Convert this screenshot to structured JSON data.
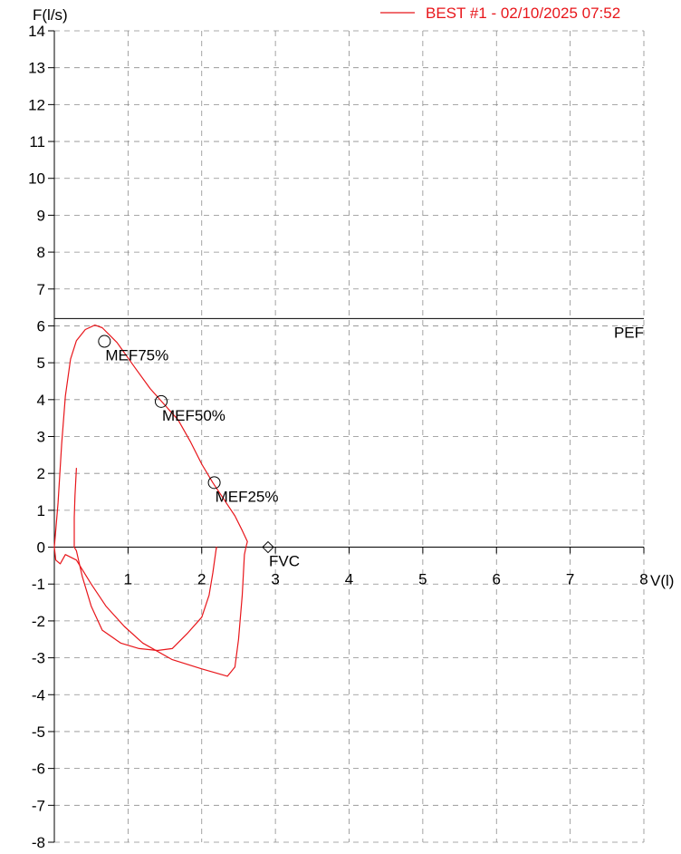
{
  "chart_data": {
    "type": "line",
    "title": "",
    "ylabel": "F(l/s)",
    "xlabel": "V(l)",
    "xlim": [
      0,
      8
    ],
    "ylim": [
      -8,
      14
    ],
    "x_ticks": [
      "1",
      "2",
      "3",
      "4",
      "5",
      "6",
      "7",
      "8"
    ],
    "y_ticks": [
      "14",
      "13",
      "12",
      "11",
      "10",
      "9",
      "8",
      "7",
      "6",
      "5",
      "4",
      "3",
      "2",
      "1",
      "0",
      "-1",
      "-2",
      "-3",
      "-4",
      "-5",
      "-6",
      "-7",
      "-8"
    ],
    "grid": true,
    "legend_position": "top-right",
    "series": [
      {
        "name": "BEST #1 - 02/10/2025  07:52",
        "color": "#e8161b",
        "trials": [
          [
            [
              2.6,
              0.0
            ],
            [
              2.62,
              0.15
            ],
            [
              2.55,
              0.45
            ],
            [
              2.45,
              0.85
            ],
            [
              2.3,
              1.3
            ],
            [
              2.15,
              1.75
            ],
            [
              2.0,
              2.25
            ],
            [
              1.85,
              2.85
            ],
            [
              1.68,
              3.45
            ],
            [
              1.5,
              3.85
            ],
            [
              1.3,
              4.3
            ],
            [
              1.1,
              4.85
            ],
            [
              0.85,
              5.55
            ],
            [
              0.65,
              5.95
            ],
            [
              0.55,
              6.02
            ],
            [
              0.42,
              5.9
            ],
            [
              0.3,
              5.6
            ],
            [
              0.22,
              5.1
            ],
            [
              0.15,
              4.1
            ],
            [
              0.1,
              2.8
            ],
            [
              0.05,
              1.2
            ],
            [
              0.0,
              0.0
            ],
            [
              0.02,
              -0.35
            ],
            [
              0.08,
              -0.45
            ],
            [
              0.15,
              -0.2
            ],
            [
              0.3,
              -0.35
            ],
            [
              0.5,
              -1.0
            ],
            [
              0.7,
              -1.6
            ],
            [
              0.95,
              -2.15
            ],
            [
              1.2,
              -2.6
            ],
            [
              1.6,
              -3.05
            ],
            [
              2.0,
              -3.3
            ],
            [
              2.35,
              -3.5
            ],
            [
              2.45,
              -3.25
            ],
            [
              2.5,
              -2.5
            ],
            [
              2.55,
              -1.3
            ],
            [
              2.58,
              -0.2
            ],
            [
              2.6,
              0.0
            ]
          ],
          [
            [
              0.3,
              2.15
            ],
            [
              0.28,
              1.4
            ],
            [
              0.27,
              0.8
            ],
            [
              0.27,
              0.0
            ],
            [
              0.3,
              -0.1
            ],
            [
              0.38,
              -0.8
            ],
            [
              0.5,
              -1.6
            ],
            [
              0.65,
              -2.25
            ],
            [
              0.9,
              -2.6
            ],
            [
              1.15,
              -2.75
            ],
            [
              1.4,
              -2.8
            ],
            [
              1.6,
              -2.75
            ],
            [
              1.8,
              -2.35
            ],
            [
              2.0,
              -1.9
            ],
            [
              2.1,
              -1.3
            ],
            [
              2.15,
              -0.7
            ],
            [
              2.2,
              0.0
            ],
            [
              2.2,
              -0.05
            ]
          ]
        ]
      }
    ],
    "reference_lines": [
      {
        "label": "PEF",
        "y": 6.2
      }
    ],
    "markers": [
      {
        "label": "MEF75%",
        "x": 0.68,
        "y": 5.58,
        "shape": "circle"
      },
      {
        "label": "MEF50%",
        "x": 1.45,
        "y": 3.95,
        "shape": "circle"
      },
      {
        "label": "MEF25%",
        "x": 2.17,
        "y": 1.75,
        "shape": "circle"
      },
      {
        "label": "FVC",
        "x": 2.9,
        "y": 0.0,
        "shape": "diamond"
      }
    ]
  }
}
